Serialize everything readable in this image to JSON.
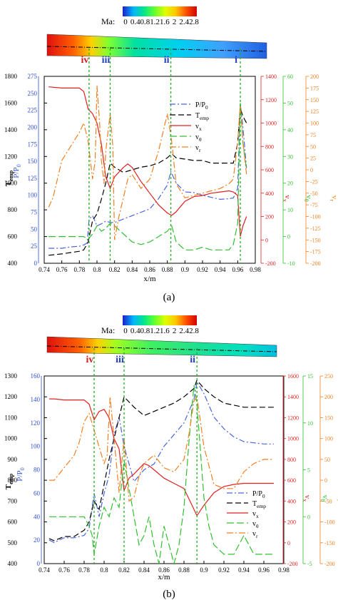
{
  "colorbar": {
    "label": "Ma:",
    "ticks": [
      "0",
      "0.4",
      "0.8",
      "1.2",
      "1.6",
      "2",
      "2.4",
      "2.8"
    ],
    "colors": [
      "#1e1ec8",
      "#00b4ff",
      "#00e68c",
      "#64ff32",
      "#dcff00",
      "#ffc800",
      "#ff5000",
      "#d20000"
    ]
  },
  "chart_data": [
    {
      "panel_label": "(a)",
      "type": "line",
      "xlabel": "x/m",
      "xlim": [
        0.74,
        0.98
      ],
      "xticks": [
        "0.74",
        "0.76",
        "0.78",
        "0.8",
        "0.82",
        "0.84",
        "0.86",
        "0.88",
        "0.9",
        "0.92",
        "0.94",
        "0.96",
        "0.98"
      ],
      "markers": [
        {
          "label": "iv",
          "x": 0.791,
          "color": "#d21e1e"
        },
        {
          "label": "iii",
          "x": 0.815,
          "color": "#2040c0"
        },
        {
          "label": "ii",
          "x": 0.884,
          "color": "#2040c0"
        },
        {
          "label": "i",
          "x": 0.963,
          "color": "#2040c0"
        }
      ],
      "axes": [
        {
          "id": "temp",
          "label": "T_emp",
          "ticks": [
            "400",
            "600",
            "800",
            "1000",
            "1200",
            "1400",
            "1600",
            "1800"
          ],
          "lim": [
            400,
            1800
          ],
          "color": "#000000"
        },
        {
          "id": "pp",
          "label": "P/P_0",
          "ticks": [
            "0",
            "25",
            "50",
            "75",
            "100",
            "125",
            "150",
            "175",
            "200",
            "225",
            "250",
            "275"
          ],
          "lim": [
            0,
            275
          ],
          "color": "#3050d0"
        },
        {
          "id": "vx",
          "label": "v_x",
          "ticks": [
            "-200",
            "0",
            "200",
            "400",
            "600",
            "800",
            "1000",
            "1200",
            "1400"
          ],
          "lim": [
            -200,
            1400
          ],
          "color": "#e02020"
        },
        {
          "id": "vtheta",
          "label": "v_θ",
          "ticks": [
            "-10",
            "0",
            "10",
            "20",
            "30",
            "40",
            "50",
            "60"
          ],
          "lim": [
            -10,
            60
          ],
          "color": "#30c030"
        },
        {
          "id": "vr",
          "label": "v_r",
          "ticks": [
            "-200",
            "-175",
            "-150",
            "-125",
            "-100",
            "-75",
            "-50",
            "-25",
            "0",
            "25",
            "50",
            "75",
            "100",
            "125",
            "150",
            "175",
            "200"
          ],
          "lim": [
            -200,
            200
          ],
          "color": "#f08020"
        }
      ],
      "legend": [
        "P/P_0",
        "T_emp",
        "v_x",
        "v_θ",
        "v_r"
      ],
      "series": [
        {
          "name": "P/P_0",
          "axis": "pp",
          "color": "#4a64e0",
          "dash": "8,3,2,3",
          "x": [
            0.745,
            0.76,
            0.77,
            0.78,
            0.785,
            0.789,
            0.791,
            0.795,
            0.8,
            0.805,
            0.81,
            0.815,
            0.82,
            0.83,
            0.84,
            0.85,
            0.86,
            0.87,
            0.88,
            0.884,
            0.89,
            0.9,
            0.91,
            0.92,
            0.93,
            0.94,
            0.95,
            0.955,
            0.96,
            0.963,
            0.966,
            0.97
          ],
          "y": [
            22,
            22,
            24,
            25,
            27,
            30,
            65,
            70,
            55,
            58,
            62,
            60,
            60,
            65,
            70,
            75,
            80,
            95,
            115,
            135,
            118,
            105,
            104,
            100,
            97,
            94,
            95,
            96,
            110,
            235,
            200,
            140
          ]
        },
        {
          "name": "T_emp",
          "axis": "temp",
          "color": "#000000",
          "dash": "8,4",
          "x": [
            0.745,
            0.76,
            0.77,
            0.78,
            0.785,
            0.79,
            0.795,
            0.8,
            0.805,
            0.81,
            0.815,
            0.82,
            0.83,
            0.84,
            0.85,
            0.86,
            0.87,
            0.88,
            0.885,
            0.89,
            0.9,
            0.91,
            0.92,
            0.93,
            0.94,
            0.95,
            0.955,
            0.96,
            0.963,
            0.966,
            0.97
          ],
          "y": [
            460,
            470,
            480,
            490,
            500,
            560,
            720,
            770,
            880,
            1000,
            1150,
            1120,
            1080,
            1100,
            1120,
            1130,
            1150,
            1190,
            1220,
            1190,
            1180,
            1170,
            1170,
            1150,
            1150,
            1150,
            1150,
            1300,
            1560,
            1500,
            1450
          ]
        },
        {
          "name": "v_x",
          "axis": "vx",
          "color": "#e02020",
          "dash": "",
          "x": [
            0.745,
            0.76,
            0.77,
            0.78,
            0.785,
            0.79,
            0.795,
            0.8,
            0.805,
            0.81,
            0.815,
            0.82,
            0.83,
            0.835,
            0.84,
            0.85,
            0.86,
            0.87,
            0.88,
            0.885,
            0.89,
            0.9,
            0.91,
            0.92,
            0.93,
            0.94,
            0.95,
            0.955,
            0.96,
            0.963,
            0.966,
            0.97
          ],
          "y": [
            1310,
            1300,
            1300,
            1300,
            1270,
            1120,
            1080,
            1000,
            820,
            540,
            440,
            540,
            620,
            650,
            620,
            500,
            400,
            300,
            230,
            210,
            240,
            330,
            370,
            380,
            400,
            410,
            420,
            410,
            380,
            30,
            120,
            200
          ]
        },
        {
          "name": "v_θ",
          "axis": "vtheta",
          "color": "#30c030",
          "dash": "10,4",
          "x": [
            0.745,
            0.76,
            0.77,
            0.78,
            0.785,
            0.79,
            0.795,
            0.8,
            0.805,
            0.81,
            0.815,
            0.82,
            0.83,
            0.84,
            0.85,
            0.86,
            0.87,
            0.88,
            0.885,
            0.89,
            0.9,
            0.91,
            0.92,
            0.93,
            0.94,
            0.95,
            0.955,
            0.96,
            0.963,
            0.966,
            0.97
          ],
          "y": [
            0,
            0,
            0,
            0,
            0,
            -1,
            1,
            4,
            2,
            3,
            5,
            4,
            1,
            -2,
            -3,
            -2,
            0,
            2,
            4,
            -2,
            -5,
            -5,
            -4,
            -5,
            -5,
            -5,
            -3,
            5,
            50,
            35,
            25
          ]
        },
        {
          "name": "v_r",
          "axis": "vr",
          "color": "#f08020",
          "dash": "9,3,2,3",
          "x": [
            0.745,
            0.75,
            0.76,
            0.77,
            0.78,
            0.785,
            0.79,
            0.795,
            0.798,
            0.8,
            0.803,
            0.805,
            0.808,
            0.81,
            0.815,
            0.818,
            0.82,
            0.825,
            0.83,
            0.835,
            0.84,
            0.85,
            0.86,
            0.87,
            0.875,
            0.88,
            0.885,
            0.89,
            0.9,
            0.91,
            0.92,
            0.93,
            0.94,
            0.95,
            0.955,
            0.96,
            0.963,
            0.966,
            0.97
          ],
          "y": [
            -80,
            -60,
            20,
            50,
            80,
            100,
            60,
            -20,
            20,
            180,
            100,
            20,
            -30,
            40,
            120,
            50,
            -150,
            -100,
            -60,
            -20,
            -10,
            -40,
            -20,
            40,
            80,
            120,
            60,
            -30,
            -60,
            -55,
            -50,
            -45,
            -40,
            -30,
            -20,
            60,
            140,
            60,
            -10
          ]
        }
      ]
    },
    {
      "panel_label": "(b)",
      "type": "line",
      "xlabel": "x/m",
      "xlim": [
        0.74,
        0.98
      ],
      "xticks": [
        "0.74",
        "0.76",
        "0.78",
        "0.8",
        "0.82",
        "0.84",
        "0.86",
        "0.88",
        "0.9",
        "0.92",
        "0.94",
        "0.96",
        "0.98"
      ],
      "markers": [
        {
          "label": "iv",
          "x": 0.79,
          "color": "#d21e1e"
        },
        {
          "label": "iii",
          "x": 0.82,
          "color": "#2040c0"
        },
        {
          "label": "ii",
          "x": 0.893,
          "color": "#2040c0"
        }
      ],
      "axes": [
        {
          "id": "temp",
          "label": "T_emp",
          "ticks": [
            "400",
            "500",
            "600",
            "700",
            "800",
            "900",
            "1000",
            "1100",
            "1200",
            "1300"
          ],
          "lim": [
            400,
            1300
          ],
          "color": "#000000"
        },
        {
          "id": "pp",
          "label": "P/P_0",
          "ticks": [
            "0",
            "20",
            "40",
            "60",
            "80",
            "100",
            "120",
            "140",
            "160"
          ],
          "lim": [
            0,
            160
          ],
          "color": "#3050d0"
        },
        {
          "id": "vx",
          "label": "v_x",
          "ticks": [
            "-200",
            "0",
            "200",
            "400",
            "600",
            "800",
            "1000",
            "1200",
            "1400",
            "1600"
          ],
          "lim": [
            -200,
            1600
          ],
          "color": "#e02020"
        },
        {
          "id": "vtheta",
          "label": "v_θ",
          "ticks": [
            "-5",
            "0",
            "5",
            "10",
            "15"
          ],
          "lim": [
            -5,
            15
          ],
          "color": "#30c030"
        },
        {
          "id": "vr",
          "label": "v_r",
          "ticks": [
            "-200",
            "-150",
            "-100",
            "-50",
            "0",
            "50",
            "100",
            "150",
            "200",
            "250"
          ],
          "lim": [
            -200,
            250
          ],
          "color": "#f08020"
        }
      ],
      "legend": [
        "P/P_0",
        "T_emp",
        "v_x",
        "v_θ",
        "v_r"
      ],
      "series": [
        {
          "name": "P/P_0",
          "axis": "pp",
          "color": "#4a64e0",
          "dash": "8,3,2,3",
          "x": [
            0.745,
            0.75,
            0.76,
            0.77,
            0.78,
            0.785,
            0.79,
            0.795,
            0.8,
            0.805,
            0.81,
            0.815,
            0.82,
            0.83,
            0.84,
            0.85,
            0.86,
            0.87,
            0.88,
            0.885,
            0.89,
            0.893,
            0.9,
            0.91,
            0.92,
            0.93,
            0.94,
            0.95,
            0.96,
            0.97
          ],
          "y": [
            20,
            18,
            22,
            22,
            24,
            30,
            60,
            40,
            60,
            75,
            110,
            125,
            100,
            70,
            80,
            85,
            100,
            110,
            120,
            130,
            140,
            155,
            145,
            125,
            115,
            108,
            104,
            103,
            102,
            102
          ]
        },
        {
          "name": "T_emp",
          "axis": "temp",
          "color": "#000000",
          "dash": "8,4",
          "x": [
            0.745,
            0.75,
            0.76,
            0.77,
            0.78,
            0.785,
            0.79,
            0.795,
            0.8,
            0.805,
            0.81,
            0.815,
            0.82,
            0.83,
            0.84,
            0.85,
            0.86,
            0.87,
            0.88,
            0.885,
            0.89,
            0.893,
            0.9,
            0.91,
            0.92,
            0.93,
            0.94,
            0.95,
            0.96,
            0.97
          ],
          "y": [
            520,
            510,
            530,
            530,
            560,
            600,
            700,
            660,
            780,
            900,
            1000,
            1100,
            1200,
            1150,
            1110,
            1130,
            1150,
            1170,
            1200,
            1220,
            1240,
            1280,
            1240,
            1200,
            1170,
            1160,
            1150,
            1150,
            1150,
            1150
          ]
        },
        {
          "name": "v_x",
          "axis": "vx",
          "color": "#e02020",
          "dash": "",
          "x": [
            0.745,
            0.75,
            0.76,
            0.77,
            0.78,
            0.785,
            0.79,
            0.795,
            0.8,
            0.805,
            0.81,
            0.815,
            0.82,
            0.825,
            0.83,
            0.84,
            0.845,
            0.85,
            0.86,
            0.87,
            0.88,
            0.885,
            0.89,
            0.893,
            0.9,
            0.91,
            0.92,
            0.93,
            0.94,
            0.95,
            0.96,
            0.97
          ],
          "y": [
            1380,
            1380,
            1370,
            1370,
            1370,
            1330,
            1180,
            1260,
            1280,
            1200,
            1000,
            900,
            500,
            620,
            660,
            760,
            740,
            700,
            620,
            570,
            520,
            420,
            320,
            260,
            360,
            480,
            540,
            560,
            570,
            570,
            570,
            570
          ]
        },
        {
          "name": "v_θ",
          "axis": "vtheta",
          "color": "#30c030",
          "dash": "10,4",
          "x": [
            0.745,
            0.75,
            0.76,
            0.77,
            0.78,
            0.785,
            0.788,
            0.79,
            0.795,
            0.8,
            0.805,
            0.81,
            0.815,
            0.82,
            0.825,
            0.83,
            0.835,
            0.84,
            0.845,
            0.85,
            0.855,
            0.86,
            0.865,
            0.87,
            0.875,
            0.88,
            0.885,
            0.89,
            0.893,
            0.9,
            0.905,
            0.91,
            0.92,
            0.93,
            0.94,
            0.95,
            0.96,
            0.97
          ],
          "y": [
            0,
            0,
            0,
            0,
            0,
            -1,
            -2,
            -4,
            -1,
            1,
            0,
            2,
            1,
            6,
            3,
            0,
            -3,
            -2,
            0,
            -3,
            -5,
            -1,
            -3,
            -5,
            -3,
            1,
            8,
            14,
            12,
            2,
            -1,
            -3,
            -4,
            -4,
            -2,
            -4,
            -4,
            -4
          ]
        },
        {
          "name": "v_r",
          "axis": "vr",
          "color": "#f08020",
          "dash": "9,3,2,3",
          "x": [
            0.745,
            0.75,
            0.76,
            0.77,
            0.775,
            0.78,
            0.785,
            0.79,
            0.795,
            0.8,
            0.803,
            0.806,
            0.81,
            0.815,
            0.82,
            0.825,
            0.83,
            0.835,
            0.84,
            0.85,
            0.86,
            0.87,
            0.88,
            0.885,
            0.89,
            0.893,
            0.9,
            0.91,
            0.92,
            0.93,
            0.94,
            0.95,
            0.96,
            0.97
          ],
          "y": [
            0,
            0,
            30,
            60,
            90,
            140,
            160,
            120,
            80,
            40,
            60,
            200,
            100,
            -30,
            100,
            -50,
            -40,
            10,
            40,
            60,
            30,
            20,
            50,
            110,
            190,
            200,
            80,
            -10,
            -20,
            -20,
            20,
            40,
            50,
            50
          ]
        }
      ]
    }
  ]
}
